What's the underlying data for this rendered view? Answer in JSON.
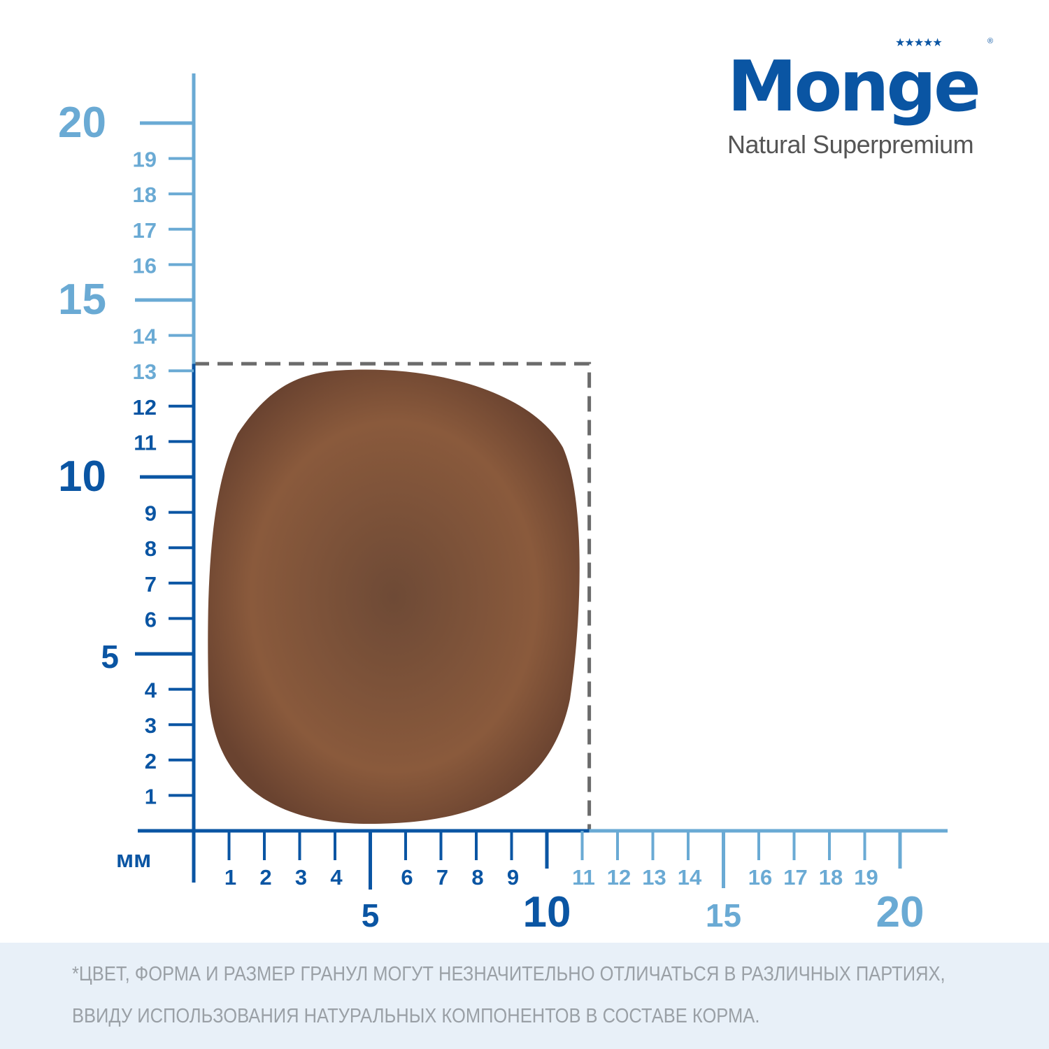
{
  "brand": {
    "name": "Monge",
    "tagline": "Natural Superpremium",
    "stars": "★★★★★",
    "registered": "®"
  },
  "ruler": {
    "unit": "мм",
    "max": 20,
    "colors": {
      "dark": "#0a55a3",
      "light": "#6aaad4",
      "dash": "#6b6b6b"
    },
    "y_major": [
      5,
      10,
      15,
      20
    ],
    "x_major": [
      5,
      10,
      15,
      20
    ],
    "y_minor": [
      1,
      2,
      3,
      4,
      6,
      7,
      8,
      9,
      11,
      12,
      13,
      14,
      16,
      17,
      18,
      19
    ],
    "x_minor": [
      1,
      2,
      3,
      4,
      6,
      7,
      8,
      9,
      11,
      12,
      13,
      14,
      16,
      17,
      18,
      19
    ]
  },
  "footer": {
    "line1": "*ЦВЕТ, ФОРМА И РАЗМЕР ГРАНУЛ МОГУТ НЕЗНАЧИТЕЛЬНО ОТЛИЧАТЬСЯ В РАЗЛИЧНЫХ ПАРТИЯХ,",
    "line2": "ВВИДУ ИСПОЛЬЗОВАНИЯ НАТУРАЛЬНЫХ КОМПОНЕНТОВ В СОСТАВЕ КОРМА."
  }
}
